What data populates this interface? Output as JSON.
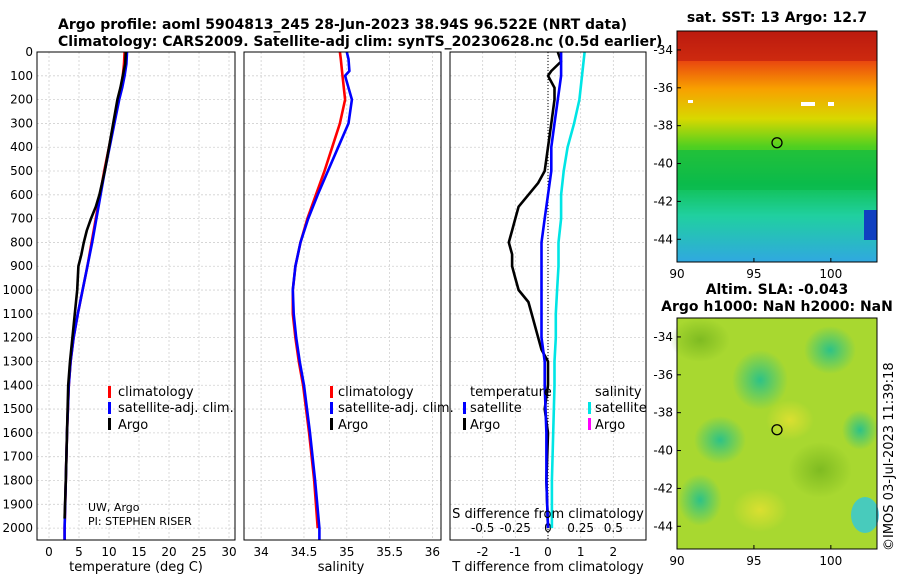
{
  "header": {
    "title_line1": "Argo profile: aoml 5904813_245 28-Jun-2023 38.94S 96.522E (NRT data)",
    "title_line2": "Climatology: CARS2009. Satellite-adj clim: synTS_20230628.nc (0.5d earlier)"
  },
  "colors": {
    "climatology": "#ff0000",
    "satellite": "#0000ff",
    "argo": "#000000",
    "sal_satellite": "#00e5e5",
    "sal_argo": "#ff00ff"
  },
  "chart_data": [
    {
      "type": "line",
      "title": "",
      "xlabel": "temperature (deg C)",
      "ylabel": "",
      "xlim": [
        -2,
        31
      ],
      "ylim": [
        2050,
        0
      ],
      "x_ticks": [
        "0",
        "5",
        "10",
        "15",
        "20",
        "25",
        "30"
      ],
      "x_tick_values": [
        0,
        5,
        10,
        15,
        20,
        25,
        30
      ],
      "y_ticks": [
        "0",
        "100",
        "200",
        "300",
        "400",
        "500",
        "600",
        "700",
        "800",
        "900",
        "1000",
        "1100",
        "1200",
        "1300",
        "1400",
        "1500",
        "1600",
        "1700",
        "1800",
        "1900",
        "2000"
      ],
      "series": [
        {
          "name": "climatology",
          "color": "#ff0000",
          "depth": [
            0,
            50,
            100,
            150,
            200,
            300,
            400,
            500,
            600,
            700,
            800,
            900,
            1000,
            1100,
            1200,
            1300,
            1400,
            1600,
            1800,
            2000,
            2050
          ],
          "values": [
            12.6,
            12.5,
            12.3,
            12.0,
            11.5,
            10.8,
            10.0,
            9.2,
            8.5,
            7.8,
            7.1,
            6.4,
            5.6,
            4.8,
            4.1,
            3.6,
            3.3,
            3.0,
            2.8,
            2.6,
            2.6
          ]
        },
        {
          "name": "satellite-adj. clim.",
          "color": "#0000ff",
          "depth": [
            0,
            50,
            100,
            150,
            200,
            300,
            400,
            500,
            600,
            700,
            800,
            900,
            1000,
            1100,
            1200,
            1300,
            1400,
            1600,
            1800,
            2000,
            2050
          ],
          "values": [
            13.0,
            12.9,
            12.6,
            12.2,
            11.7,
            10.9,
            10.1,
            9.3,
            8.6,
            7.9,
            7.2,
            6.4,
            5.6,
            4.8,
            4.1,
            3.6,
            3.3,
            3.0,
            2.8,
            2.6,
            2.6
          ]
        },
        {
          "name": "Argo",
          "color": "#000000",
          "depth": [
            0,
            50,
            100,
            150,
            200,
            300,
            400,
            500,
            600,
            650,
            700,
            750,
            800,
            850,
            900,
            950,
            1000,
            1100,
            1200,
            1300,
            1400,
            1600,
            1800,
            1960
          ],
          "values": [
            12.8,
            12.7,
            12.3,
            11.9,
            11.4,
            10.7,
            10.0,
            9.3,
            8.4,
            7.8,
            7.0,
            6.3,
            5.8,
            5.4,
            4.9,
            4.8,
            4.7,
            4.3,
            3.9,
            3.5,
            3.2,
            3.0,
            2.8,
            2.6
          ]
        }
      ],
      "legend": [
        "climatology",
        "satellite-adj. clim.",
        "Argo"
      ],
      "annotation": [
        "UW, Argo",
        "PI: STEPHEN RISER"
      ]
    },
    {
      "type": "line",
      "xlabel": "salinity",
      "xlim": [
        33.8,
        36.1
      ],
      "ylim": [
        2050,
        0
      ],
      "x_ticks": [
        "34",
        "34.5",
        "35",
        "35.5",
        "36"
      ],
      "x_tick_values": [
        34,
        34.5,
        35,
        35.5,
        36
      ],
      "series": [
        {
          "name": "climatology",
          "color": "#ff0000",
          "depth": [
            0,
            30,
            100,
            200,
            300,
            400,
            500,
            600,
            700,
            800,
            900,
            1000,
            1100,
            1200,
            1300,
            1400,
            1600,
            1800,
            2000
          ],
          "values": [
            34.92,
            34.93,
            34.95,
            34.98,
            34.92,
            34.83,
            34.74,
            34.64,
            34.54,
            34.46,
            34.4,
            34.37,
            34.37,
            34.4,
            34.44,
            34.49,
            34.56,
            34.62,
            34.66
          ]
        },
        {
          "name": "satellite-adj. clim.",
          "color": "#0000ff",
          "depth": [
            0,
            30,
            80,
            100,
            200,
            300,
            400,
            500,
            600,
            700,
            800,
            900,
            1000,
            1100,
            1200,
            1300,
            1400,
            1600,
            1800,
            2000,
            2050
          ],
          "values": [
            35.0,
            35.02,
            35.03,
            34.98,
            35.06,
            35.02,
            34.9,
            34.78,
            34.66,
            34.55,
            34.46,
            34.4,
            34.37,
            34.38,
            34.41,
            34.45,
            34.5,
            34.57,
            34.63,
            34.68,
            34.68
          ]
        }
      ],
      "legend": [
        "climatology",
        "satellite-adj. clim.",
        "Argo"
      ]
    },
    {
      "type": "line",
      "xlabel": "T difference from climatology",
      "top_label": "S difference from climatology",
      "xlim": [
        -3,
        3
      ],
      "ylim": [
        2050,
        0
      ],
      "x_ticks": [
        "-2",
        "-1",
        "0",
        "1",
        "2"
      ],
      "x_tick_values": [
        -2,
        -1,
        0,
        1,
        2
      ],
      "s_ticks": [
        "-0.5",
        "-0.25",
        "0",
        "0.25",
        "0.5"
      ],
      "s_tick_values": [
        -0.5,
        -0.25,
        0,
        0.25,
        0.5
      ],
      "series": [
        {
          "name": "Argo T",
          "color": "#000000",
          "depth": [
            0,
            40,
            80,
            100,
            150,
            200,
            300,
            400,
            500,
            550,
            600,
            650,
            700,
            750,
            800,
            850,
            900,
            950,
            1000,
            1050,
            1100,
            1200,
            1250,
            1300,
            1400,
            1500,
            1600,
            1800,
            2000
          ],
          "values": [
            0.3,
            0.4,
            0.1,
            0.0,
            0.2,
            0.2,
            0.1,
            0.0,
            -0.1,
            -0.3,
            -0.6,
            -0.9,
            -1.0,
            -1.1,
            -1.2,
            -1.1,
            -1.1,
            -1.0,
            -0.9,
            -0.6,
            -0.5,
            -0.3,
            -0.2,
            0.0,
            0.0,
            -0.1,
            0.0,
            -0.05,
            0.0
          ]
        },
        {
          "name": "satellite T",
          "color": "#0000ff",
          "depth": [
            0,
            100,
            200,
            300,
            400,
            500,
            600,
            700,
            800,
            900,
            1000,
            1100,
            1200,
            1300,
            1400,
            1600,
            1800,
            2000
          ],
          "values": [
            0.4,
            0.4,
            0.3,
            0.2,
            0.1,
            0.1,
            0.0,
            -0.1,
            -0.2,
            -0.2,
            -0.2,
            -0.2,
            -0.2,
            -0.1,
            -0.1,
            -0.05,
            -0.05,
            0.0
          ]
        },
        {
          "name": "satellite S",
          "color": "#00e5e5",
          "depth": [
            0,
            100,
            200,
            300,
            400,
            500,
            600,
            700,
            800,
            900,
            1000,
            1100,
            1200,
            1300,
            1400,
            1600,
            1800,
            2000
          ],
          "values": [
            0.28,
            0.26,
            0.24,
            0.2,
            0.15,
            0.12,
            0.1,
            0.1,
            0.08,
            0.08,
            0.07,
            0.06,
            0.06,
            0.05,
            0.05,
            0.04,
            0.03,
            0.03
          ]
        }
      ],
      "legend_left_title": "temperature",
      "legend_right_title": "salinity",
      "legend_left": [
        "satellite",
        "Argo"
      ],
      "legend_right": [
        "satellite",
        "Argo"
      ]
    },
    {
      "type": "heatmap",
      "title": "sat. SST: 13 Argo: 12.7",
      "x_ticks": [
        "90",
        "95",
        "100"
      ],
      "y_ticks": [
        "-34",
        "-36",
        "-38",
        "-40",
        "-42",
        "-44"
      ],
      "marker": {
        "lon": 96.5,
        "lat": -38.9
      }
    },
    {
      "type": "heatmap",
      "title_line1": "Altim. SLA: -0.043",
      "title_line2": "Argo h1000: NaN h2000: NaN",
      "x_ticks": [
        "90",
        "95",
        "100"
      ],
      "y_ticks": [
        "-34",
        "-36",
        "-38",
        "-40",
        "-42",
        "-44"
      ],
      "marker": {
        "lon": 96.5,
        "lat": -38.9
      }
    }
  ],
  "side_label": "©IMOS 03-Jul-2023 11:39:18"
}
